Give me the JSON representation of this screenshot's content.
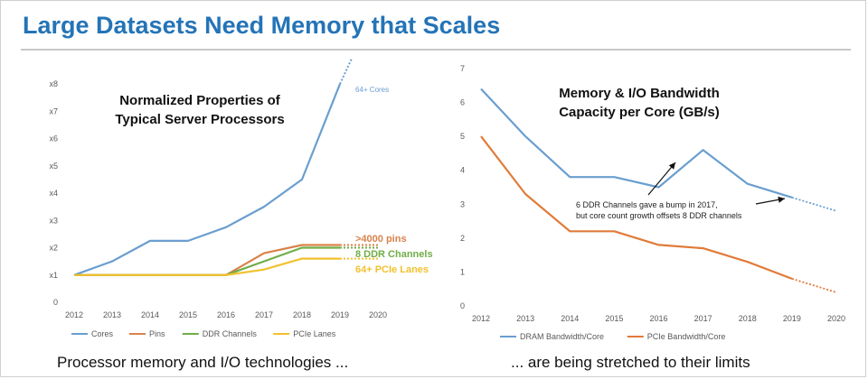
{
  "header": {
    "title": "Large Datasets Need Memory that Scales"
  },
  "captions": {
    "left": "Processor memory and I/O technologies ...",
    "right": "... are being stretched to their limits"
  },
  "chart_data": [
    {
      "type": "line",
      "title_lines": [
        "Normalized Properties of",
        "Typical Server Processors"
      ],
      "x": [
        2012,
        2013,
        2014,
        2015,
        2016,
        2017,
        2018,
        2019,
        2020
      ],
      "ylim": [
        0,
        8
      ],
      "y_ticks": [
        "0",
        "x1",
        "x2",
        "x3",
        "x4",
        "x5",
        "x6",
        "x7",
        "x8"
      ],
      "grid": false,
      "legend_position": "bottom",
      "series": [
        {
          "name": "Cores",
          "color": "#6a9ecf",
          "x": [
            2012,
            2013,
            2014,
            2015,
            2016,
            2017,
            2018,
            2019
          ],
          "values": [
            1,
            1.5,
            2.25,
            2.25,
            2.75,
            3.5,
            4.5,
            8
          ],
          "projection": {
            "x": [
              2019,
              2019.3
            ],
            "values": [
              8,
              8.9
            ]
          },
          "end_label": "64+ Cores"
        },
        {
          "name": "Pins",
          "color": "#d9824a",
          "x": [
            2012,
            2013,
            2014,
            2015,
            2016,
            2017,
            2018,
            2019
          ],
          "values": [
            1,
            1,
            1,
            1,
            1,
            1.8,
            2.1,
            2.1
          ],
          "projection": {
            "x": [
              2019,
              2020
            ],
            "values": [
              2.1,
              2.1
            ]
          },
          "end_label": ">4000 pins"
        },
        {
          "name": "DDR Channels",
          "color": "#70ad47",
          "x": [
            2012,
            2013,
            2014,
            2015,
            2016,
            2017,
            2018,
            2019
          ],
          "values": [
            1,
            1,
            1,
            1,
            1,
            1.5,
            2.0,
            2.0
          ],
          "projection": {
            "x": [
              2019,
              2020
            ],
            "values": [
              2.0,
              2.0
            ]
          },
          "end_label": "8 DDR Channels"
        },
        {
          "name": "PCIe Lanes",
          "color": "#f2c12e",
          "x": [
            2012,
            2013,
            2014,
            2015,
            2016,
            2017,
            2018,
            2019
          ],
          "values": [
            1,
            1,
            1,
            1,
            1,
            1.2,
            1.6,
            1.6
          ],
          "projection": {
            "x": [
              2019,
              2020
            ],
            "values": [
              1.6,
              1.6
            ]
          },
          "end_label": "64+ PCIe Lanes"
        }
      ]
    },
    {
      "type": "line",
      "title_lines": [
        "Memory & I/O Bandwidth",
        "Capacity per Core (GB/s)"
      ],
      "x": [
        2012,
        2013,
        2014,
        2015,
        2016,
        2017,
        2018,
        2019,
        2020
      ],
      "ylim": [
        0,
        7
      ],
      "y_ticks": [
        "0",
        "1",
        "2",
        "3",
        "4",
        "5",
        "6",
        "7"
      ],
      "grid": false,
      "legend_position": "bottom",
      "series": [
        {
          "name": "DRAM Bandwidth/Core",
          "color": "#6a9ecf",
          "x": [
            2012,
            2013,
            2014,
            2015,
            2016,
            2017,
            2018,
            2019
          ],
          "values": [
            6.4,
            5.0,
            3.8,
            3.8,
            3.5,
            4.6,
            3.6,
            3.2
          ],
          "projection": {
            "x": [
              2019,
              2020
            ],
            "values": [
              3.2,
              2.8
            ]
          }
        },
        {
          "name": "PCIe Bandwidth/Core",
          "color": "#e07b39",
          "x": [
            2012,
            2013,
            2014,
            2015,
            2016,
            2017,
            2018,
            2019
          ],
          "values": [
            5.0,
            3.3,
            2.2,
            2.2,
            1.8,
            1.7,
            1.3,
            0.8
          ],
          "projection": {
            "x": [
              2019,
              2020
            ],
            "values": [
              0.8,
              0.4
            ]
          }
        }
      ],
      "annotation": {
        "lines": [
          "6 DDR Channels gave a bump in 2017,",
          "but core count growth offsets 8 DDR channels"
        ]
      }
    }
  ]
}
